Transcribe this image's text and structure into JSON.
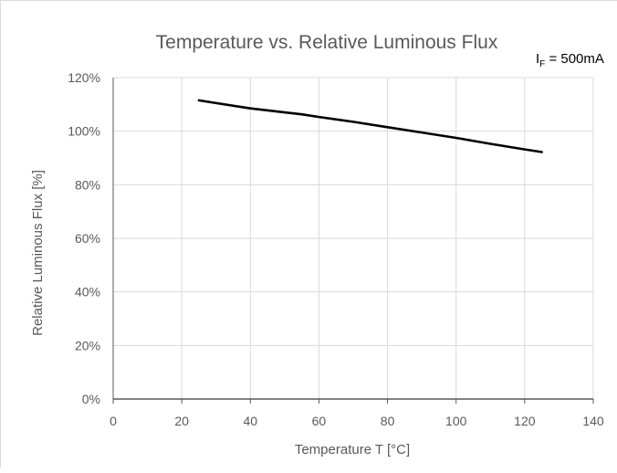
{
  "chart_data": {
    "type": "line",
    "title": "Temperature vs. Relative Luminous Flux",
    "annotation": {
      "symbol": "I",
      "subscript": "F",
      "text": " = 500mA"
    },
    "xlabel": "Temperature T [°C]",
    "ylabel": "Relative Luminous Flux  [%]",
    "xlim": [
      0,
      140
    ],
    "ylim": [
      0,
      120
    ],
    "xticks": [
      0,
      20,
      40,
      60,
      80,
      100,
      120,
      140
    ],
    "yticks": [
      0,
      20,
      40,
      60,
      80,
      100,
      120
    ],
    "ytick_labels": [
      "0%",
      "20%",
      "40%",
      "60%",
      "80%",
      "100%",
      "120%"
    ],
    "grid": true,
    "colors": {
      "line": "#000000",
      "grid": "#d9d9d9",
      "axis": "#595959",
      "text": "#595959"
    },
    "series": [
      {
        "x": [
          25,
          30,
          40,
          50,
          55,
          60,
          70,
          80,
          90,
          100,
          110,
          120,
          125
        ],
        "y": [
          111.5,
          110.5,
          108.5,
          107,
          106.3,
          105.3,
          103.5,
          101.5,
          99.5,
          97.5,
          95.3,
          93.2,
          92.2
        ]
      }
    ]
  }
}
